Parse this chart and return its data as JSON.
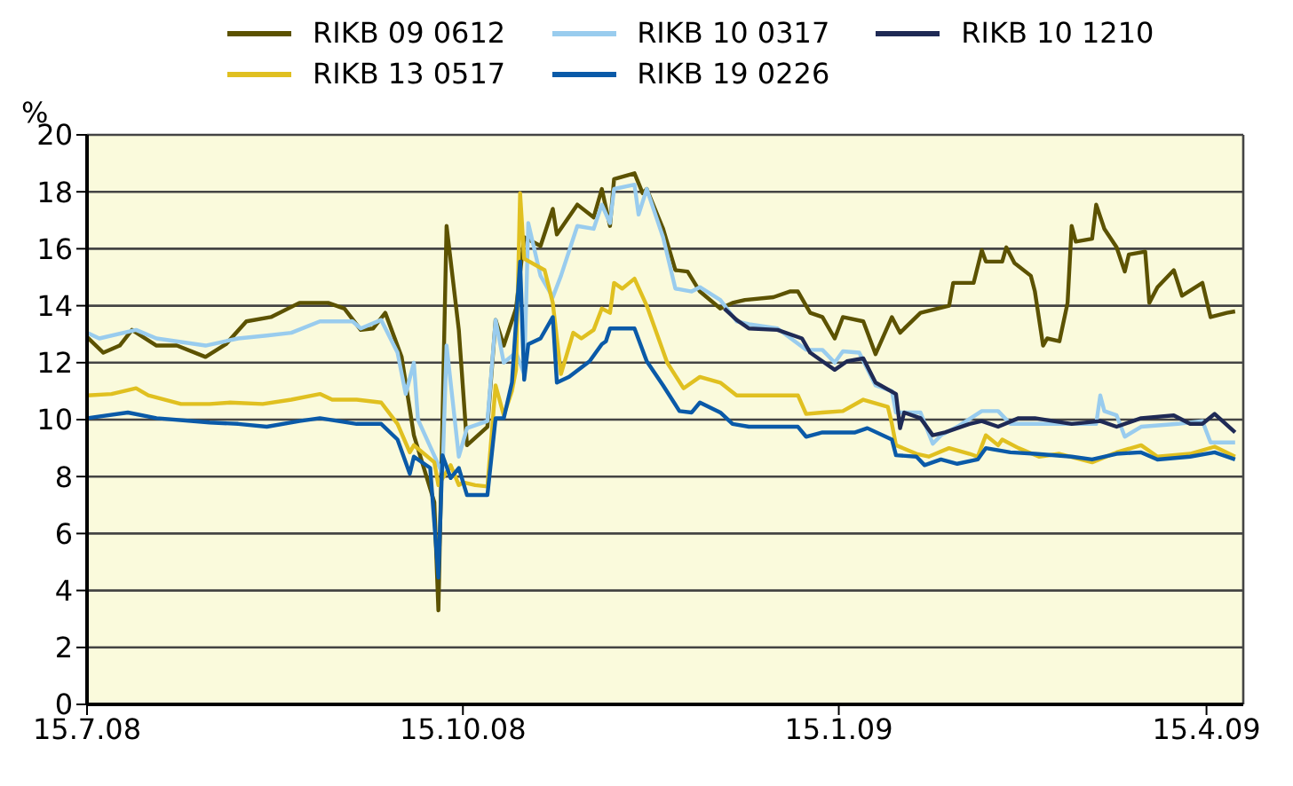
{
  "chart_data": {
    "type": "line",
    "ylabel": "%",
    "legend": "top",
    "grid": "y",
    "marker": "none",
    "line_style": "solid",
    "xlim": [
      "2008-07-15",
      "2009-04-24"
    ],
    "xticks": [
      {
        "value": "2008-07-15",
        "label": "15.7.08"
      },
      {
        "value": "2008-10-15",
        "label": "15.10.08"
      },
      {
        "value": "2009-01-15",
        "label": "15.1.09"
      },
      {
        "value": "2009-04-15",
        "label": "15.4.09"
      }
    ],
    "ylim": [
      0,
      20
    ],
    "yticks": [
      0,
      2,
      4,
      6,
      8,
      10,
      12,
      14,
      16,
      18,
      20
    ],
    "series": [
      {
        "name": "RIKB 09 0612",
        "color": "#5c5200",
        "x": [
          "2008-07-15",
          "2008-07-19",
          "2008-07-23",
          "2008-07-26",
          "2008-08-01",
          "2008-08-06",
          "2008-08-13",
          "2008-08-18",
          "2008-08-23",
          "2008-08-29",
          "2008-09-05",
          "2008-09-12",
          "2008-09-16",
          "2008-09-20",
          "2008-09-23",
          "2008-09-26",
          "2008-09-30",
          "2008-10-03",
          "2008-10-08",
          "2008-10-09",
          "2008-10-11",
          "2008-10-14",
          "2008-10-16",
          "2008-10-21",
          "2008-10-23",
          "2008-10-25",
          "2008-10-28",
          "2008-10-30",
          "2008-11-03",
          "2008-11-06",
          "2008-11-07",
          "2008-11-12",
          "2008-11-16",
          "2008-11-18",
          "2008-11-20",
          "2008-11-21",
          "2008-11-26",
          "2008-11-28",
          "2008-11-29",
          "2008-12-03",
          "2008-12-06",
          "2008-12-09",
          "2008-12-12",
          "2008-12-17",
          "2008-12-20",
          "2008-12-23",
          "2008-12-30",
          "2009-01-03",
          "2009-01-05",
          "2009-01-08",
          "2009-01-11",
          "2009-01-14",
          "2009-01-16",
          "2009-01-21",
          "2009-01-24",
          "2009-01-28",
          "2009-01-30",
          "2009-02-04",
          "2009-02-11",
          "2009-02-12",
          "2009-02-17",
          "2009-02-19",
          "2009-02-20",
          "2009-02-24",
          "2009-02-25",
          "2009-02-27",
          "2009-03-03",
          "2009-03-04",
          "2009-03-06",
          "2009-03-07",
          "2009-03-10",
          "2009-03-12",
          "2009-03-13",
          "2009-03-14",
          "2009-03-18",
          "2009-03-19",
          "2009-03-21",
          "2009-03-24",
          "2009-03-26",
          "2009-03-27",
          "2009-03-31",
          "2009-04-01",
          "2009-04-03",
          "2009-04-07",
          "2009-04-09",
          "2009-04-14",
          "2009-04-16",
          "2009-04-20",
          "2009-04-22"
        ],
        "values": [
          12.9,
          12.35,
          12.6,
          13.15,
          12.6,
          12.6,
          12.2,
          12.65,
          13.45,
          13.6,
          14.1,
          14.1,
          13.9,
          13.15,
          13.2,
          13.75,
          12.2,
          9.45,
          7.1,
          3.3,
          16.8,
          13.15,
          9.1,
          9.75,
          13.5,
          12.6,
          13.9,
          16.4,
          16.1,
          17.4,
          16.5,
          17.55,
          17.1,
          18.1,
          16.8,
          18.45,
          18.65,
          17.95,
          18.1,
          16.7,
          15.25,
          15.2,
          14.5,
          13.9,
          14.1,
          14.2,
          14.3,
          14.5,
          14.5,
          13.75,
          13.6,
          12.85,
          13.6,
          13.45,
          12.3,
          13.6,
          13.05,
          13.75,
          14.0,
          14.8,
          14.8,
          15.95,
          15.55,
          15.55,
          16.05,
          15.5,
          15.05,
          14.5,
          12.6,
          12.85,
          12.75,
          14.1,
          16.8,
          16.25,
          16.35,
          17.55,
          16.7,
          16.05,
          15.2,
          15.8,
          15.9,
          14.1,
          14.65,
          15.25,
          14.35,
          14.8,
          13.6,
          13.75,
          13.8
        ]
      },
      {
        "name": "RIKB 10 0317",
        "color": "#99ccee",
        "x": [
          "2008-07-15",
          "2008-07-18",
          "2008-07-27",
          "2008-08-01",
          "2008-08-13",
          "2008-08-21",
          "2008-08-28",
          "2008-09-03",
          "2008-09-10",
          "2008-09-18",
          "2008-09-20",
          "2008-09-25",
          "2008-09-29",
          "2008-10-01",
          "2008-10-03",
          "2008-10-04",
          "2008-10-10",
          "2008-10-11",
          "2008-10-14",
          "2008-10-16",
          "2008-10-21",
          "2008-10-23",
          "2008-10-25",
          "2008-10-28",
          "2008-10-30",
          "2008-10-31",
          "2008-11-03",
          "2008-11-06",
          "2008-11-08",
          "2008-11-12",
          "2008-11-16",
          "2008-11-18",
          "2008-11-20",
          "2008-11-21",
          "2008-11-26",
          "2008-11-27",
          "2008-11-29",
          "2008-12-03",
          "2008-12-06",
          "2008-12-10",
          "2008-12-12",
          "2008-12-17",
          "2008-12-21",
          "2008-12-24",
          "2008-12-31",
          "2009-01-07",
          "2009-01-11",
          "2009-01-14",
          "2009-01-16",
          "2009-01-20",
          "2009-01-24",
          "2009-01-28",
          "2009-01-29",
          "2009-02-04",
          "2009-02-07",
          "2009-02-09",
          "2009-02-13",
          "2009-02-19",
          "2009-02-23",
          "2009-02-26",
          "2009-03-07",
          "2009-03-13",
          "2009-03-19",
          "2009-03-20",
          "2009-03-21",
          "2009-03-24",
          "2009-03-26",
          "2009-03-30",
          "2009-04-08",
          "2009-04-14",
          "2009-04-16",
          "2009-04-22"
        ],
        "values": [
          13.05,
          12.85,
          13.15,
          12.85,
          12.6,
          12.85,
          12.95,
          13.05,
          13.45,
          13.45,
          13.2,
          13.5,
          12.35,
          10.9,
          12.0,
          10.0,
          8.1,
          12.6,
          8.7,
          9.7,
          9.95,
          13.5,
          12.0,
          12.35,
          11.6,
          16.9,
          15.05,
          14.3,
          15.05,
          16.8,
          16.7,
          17.55,
          16.9,
          18.1,
          18.25,
          17.2,
          18.1,
          16.4,
          14.6,
          14.5,
          14.65,
          14.2,
          13.45,
          13.35,
          13.2,
          12.45,
          12.45,
          12.0,
          12.4,
          12.35,
          11.2,
          11.0,
          10.25,
          10.25,
          9.15,
          9.45,
          9.75,
          10.3,
          10.3,
          9.85,
          9.85,
          9.85,
          9.85,
          10.85,
          10.3,
          10.15,
          9.4,
          9.75,
          9.85,
          9.95,
          9.2,
          9.2
        ]
      },
      {
        "name": "RIKB 10 1210",
        "color": "#1f2a55",
        "x": [
          "2008-12-18",
          "2008-12-21",
          "2008-12-24",
          "2008-12-31",
          "2009-01-06",
          "2009-01-08",
          "2009-01-11",
          "2009-01-14",
          "2009-01-17",
          "2009-01-21",
          "2009-01-24",
          "2009-01-29",
          "2009-01-30",
          "2009-01-31",
          "2009-02-04",
          "2009-02-07",
          "2009-02-10",
          "2009-02-16",
          "2009-02-19",
          "2009-02-23",
          "2009-02-28",
          "2009-03-04",
          "2009-03-13",
          "2009-03-20",
          "2009-03-24",
          "2009-03-30",
          "2009-04-07",
          "2009-04-11",
          "2009-04-14",
          "2009-04-17",
          "2009-04-22"
        ],
        "values": [
          13.9,
          13.5,
          13.2,
          13.15,
          12.85,
          12.35,
          12.05,
          11.75,
          12.05,
          12.15,
          11.3,
          10.9,
          9.7,
          10.25,
          10.05,
          9.45,
          9.55,
          9.85,
          9.95,
          9.75,
          10.05,
          10.05,
          9.85,
          9.95,
          9.75,
          10.05,
          10.15,
          9.85,
          9.85,
          10.2,
          9.55
        ]
      },
      {
        "name": "RIKB 13 0517",
        "color": "#e0c020",
        "x": [
          "2008-07-15",
          "2008-07-21",
          "2008-07-27",
          "2008-07-30",
          "2008-08-07",
          "2008-08-14",
          "2008-08-19",
          "2008-08-27",
          "2008-09-03",
          "2008-09-10",
          "2008-09-13",
          "2008-09-19",
          "2008-09-25",
          "2008-09-29",
          "2008-10-02",
          "2008-10-03",
          "2008-10-08",
          "2008-10-09",
          "2008-10-12",
          "2008-10-14",
          "2008-10-15",
          "2008-10-18",
          "2008-10-21",
          "2008-10-23",
          "2008-10-25",
          "2008-10-27",
          "2008-10-28",
          "2008-10-29",
          "2008-10-30",
          "2008-11-04",
          "2008-11-06",
          "2008-11-08",
          "2008-11-11",
          "2008-11-13",
          "2008-11-16",
          "2008-11-18",
          "2008-11-20",
          "2008-11-21",
          "2008-11-23",
          "2008-11-26",
          "2008-11-29",
          "2008-12-04",
          "2008-12-08",
          "2008-12-12",
          "2008-12-17",
          "2008-12-21",
          "2008-12-24",
          "2009-01-05",
          "2009-01-07",
          "2009-01-11",
          "2009-01-16",
          "2009-01-21",
          "2009-01-27",
          "2009-01-28",
          "2009-01-29",
          "2009-02-03",
          "2009-02-06",
          "2009-02-11",
          "2009-02-16",
          "2009-02-18",
          "2009-02-20",
          "2009-02-23",
          "2009-02-24",
          "2009-02-28",
          "2009-03-05",
          "2009-03-10",
          "2009-03-18",
          "2009-03-24",
          "2009-03-30",
          "2009-04-03",
          "2009-04-11",
          "2009-04-17",
          "2009-04-22"
        ],
        "values": [
          10.85,
          10.9,
          11.1,
          10.85,
          10.55,
          10.55,
          10.6,
          10.55,
          10.7,
          10.9,
          10.7,
          10.7,
          10.6,
          9.85,
          8.85,
          9.1,
          8.5,
          7.7,
          8.4,
          7.7,
          7.8,
          7.7,
          7.65,
          11.2,
          10.15,
          11.0,
          11.75,
          17.95,
          15.65,
          15.25,
          14.1,
          11.6,
          13.05,
          12.85,
          13.15,
          13.9,
          13.75,
          14.8,
          14.6,
          14.95,
          14.0,
          12.0,
          11.1,
          11.5,
          11.3,
          10.85,
          10.85,
          10.85,
          10.2,
          10.25,
          10.3,
          10.7,
          10.45,
          9.85,
          9.1,
          8.8,
          8.7,
          9.0,
          8.8,
          8.7,
          9.45,
          9.1,
          9.3,
          9.0,
          8.7,
          8.8,
          8.5,
          8.85,
          9.1,
          8.7,
          8.8,
          9.05,
          8.7
        ]
      },
      {
        "name": "RIKB 19 0226",
        "color": "#0a5aa8",
        "x": [
          "2008-07-15",
          "2008-07-25",
          "2008-08-01",
          "2008-08-14",
          "2008-08-21",
          "2008-08-28",
          "2008-09-05",
          "2008-09-10",
          "2008-09-19",
          "2008-09-25",
          "2008-09-29",
          "2008-10-02",
          "2008-10-03",
          "2008-10-07",
          "2008-10-09",
          "2008-10-10",
          "2008-10-12",
          "2008-10-14",
          "2008-10-16",
          "2008-10-21",
          "2008-10-23",
          "2008-10-25",
          "2008-10-27",
          "2008-10-29",
          "2008-10-30",
          "2008-10-31",
          "2008-11-03",
          "2008-11-06",
          "2008-11-07",
          "2008-11-10",
          "2008-11-15",
          "2008-11-18",
          "2008-11-19",
          "2008-11-20",
          "2008-11-26",
          "2008-11-29",
          "2008-12-03",
          "2008-12-07",
          "2008-12-10",
          "2008-12-12",
          "2008-12-17",
          "2008-12-20",
          "2008-12-24",
          "2009-01-05",
          "2009-01-07",
          "2009-01-11",
          "2009-01-19",
          "2009-01-22",
          "2009-01-28",
          "2009-01-29",
          "2009-02-03",
          "2009-02-05",
          "2009-02-09",
          "2009-02-13",
          "2009-02-18",
          "2009-02-20",
          "2009-02-26",
          "2009-03-04",
          "2009-03-13",
          "2009-03-18",
          "2009-03-24",
          "2009-03-30",
          "2009-04-03",
          "2009-04-11",
          "2009-04-17",
          "2009-04-22"
        ],
        "values": [
          10.05,
          10.25,
          10.05,
          9.9,
          9.85,
          9.75,
          9.95,
          10.05,
          9.85,
          9.85,
          9.3,
          8.1,
          8.7,
          8.3,
          4.45,
          8.75,
          7.95,
          8.3,
          7.35,
          7.35,
          10.05,
          10.05,
          11.3,
          15.55,
          11.4,
          12.65,
          12.85,
          13.6,
          11.3,
          11.5,
          12.05,
          12.65,
          12.75,
          13.2,
          13.2,
          12.05,
          11.2,
          10.3,
          10.25,
          10.6,
          10.25,
          9.85,
          9.75,
          9.75,
          9.4,
          9.55,
          9.55,
          9.7,
          9.3,
          8.75,
          8.7,
          8.4,
          8.6,
          8.45,
          8.6,
          9.0,
          8.85,
          8.8,
          8.7,
          8.6,
          8.8,
          8.85,
          8.6,
          8.7,
          8.85,
          8.6
        ]
      }
    ]
  }
}
